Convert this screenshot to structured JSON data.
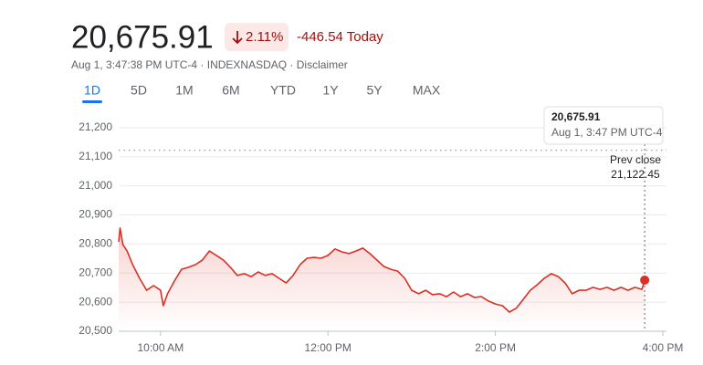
{
  "header": {
    "price": "20,675.91",
    "change_pct": "2.11%",
    "change_abs": "-446.54 Today",
    "subtitle": "Aug 1, 3:47:38 PM UTC-4 · INDEXNASDAQ · Disclaimer",
    "tabs": [
      "1D",
      "5D",
      "1M",
      "6M",
      "YTD",
      "1Y",
      "5Y",
      "MAX"
    ],
    "selected_tab": 0
  },
  "tooltip": {
    "value": "20,675.91",
    "time": "Aug 1, 3:47 PM UTC-4"
  },
  "chart_data": {
    "type": "line",
    "color": "#d93025",
    "x": [
      570,
      571,
      573,
      576,
      580,
      585,
      590,
      595,
      600,
      602,
      605,
      610,
      615,
      620,
      625,
      630,
      635,
      640,
      645,
      650,
      655,
      660,
      665,
      670,
      675,
      680,
      685,
      690,
      695,
      700,
      705,
      710,
      715,
      720,
      725,
      730,
      735,
      740,
      745,
      750,
      755,
      760,
      765,
      770,
      775,
      780,
      785,
      790,
      795,
      800,
      805,
      810,
      815,
      820,
      825,
      830,
      835,
      840,
      845,
      850,
      855,
      860,
      865,
      870,
      875,
      880,
      885,
      890,
      895,
      900,
      905,
      910,
      915,
      920,
      925,
      930,
      935,
      940,
      945,
      947
    ],
    "values": [
      20808,
      20855,
      20798,
      20776,
      20729,
      20682,
      20641,
      20657,
      20641,
      20588,
      20629,
      20673,
      20713,
      20720,
      20729,
      20745,
      20776,
      20761,
      20745,
      20720,
      20692,
      20698,
      20688,
      20704,
      20692,
      20698,
      20682,
      20666,
      20692,
      20729,
      20751,
      20754,
      20751,
      20761,
      20783,
      20773,
      20767,
      20776,
      20786,
      20767,
      20745,
      20723,
      20713,
      20707,
      20682,
      20641,
      20629,
      20641,
      20626,
      20629,
      20619,
      20635,
      20619,
      20629,
      20616,
      20619,
      20604,
      20594,
      20588,
      20566,
      20579,
      20610,
      20641,
      20660,
      20682,
      20698,
      20688,
      20666,
      20629,
      20641,
      20641,
      20651,
      20644,
      20651,
      20641,
      20651,
      20641,
      20651,
      20644,
      20675.91
    ],
    "xlim": [
      570,
      960
    ],
    "xticks": [
      {
        "value": 600,
        "label": "10:00 AM"
      },
      {
        "value": 720,
        "label": "12:00 PM"
      },
      {
        "value": 840,
        "label": "2:00 PM"
      },
      {
        "value": 960,
        "label": "4:00 PM"
      }
    ],
    "ylim": [
      20500,
      21200
    ],
    "yticks": [
      {
        "value": 20500,
        "label": "20,500"
      },
      {
        "value": 20600,
        "label": "20,600"
      },
      {
        "value": 20700,
        "label": "20,700"
      },
      {
        "value": 20800,
        "label": "20,800"
      },
      {
        "value": 20900,
        "label": "20,900"
      },
      {
        "value": 21000,
        "label": "21,000"
      },
      {
        "value": 21100,
        "label": "21,100"
      },
      {
        "value": 21200,
        "label": "21,200"
      }
    ],
    "grid": true,
    "reference_line": {
      "name": "Prev close",
      "value": 21122.45,
      "label": "21,122.45"
    }
  }
}
